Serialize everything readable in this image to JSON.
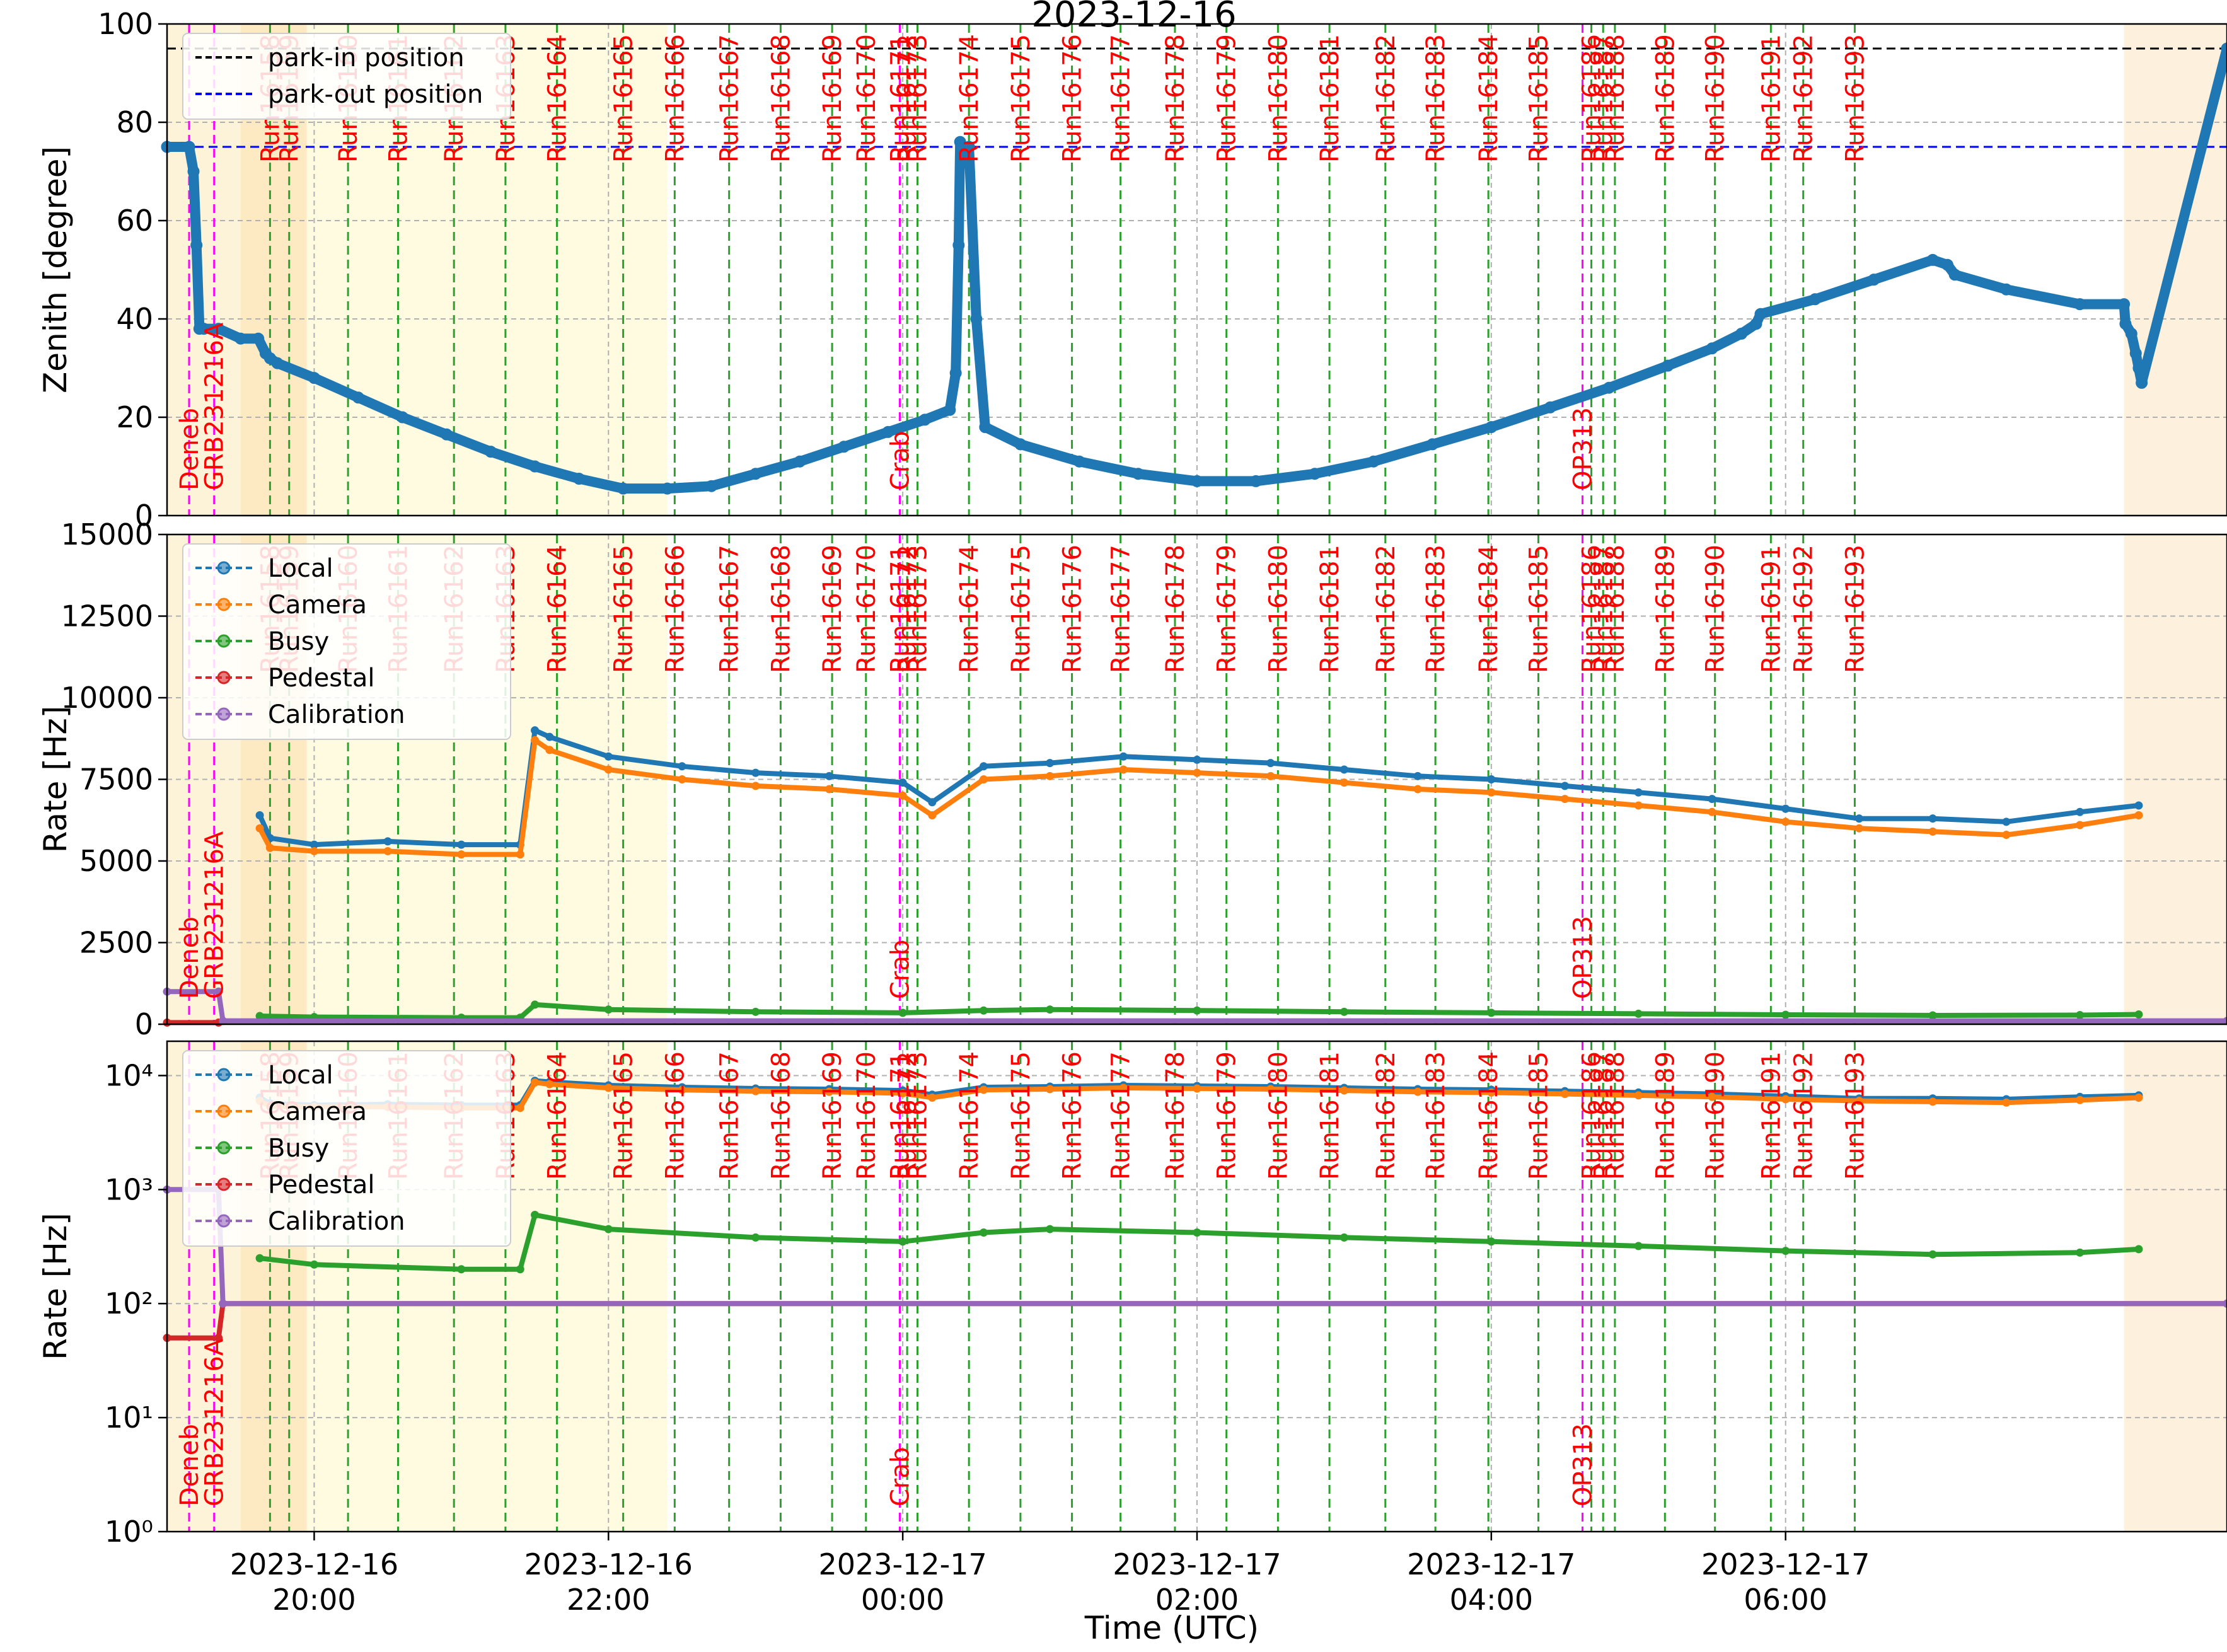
{
  "chart_data": [
    {
      "panel": "zenith",
      "type": "line",
      "title": "2023-12-16",
      "xlabel": "",
      "ylabel": "Zenith [degree]",
      "ylim": [
        0,
        100
      ],
      "yticks": [
        "0",
        "20",
        "40",
        "60",
        "80",
        "100"
      ],
      "grid": true,
      "legend": "top-left",
      "reference_lines": [
        {
          "name": "park-in position",
          "y": 95,
          "color": "#000000"
        },
        {
          "name": "park-out position",
          "y": 75,
          "color": "#0000ff"
        }
      ],
      "series": [
        {
          "name": "",
          "color": "#1f77b4",
          "x_hours": [
            -0.1,
            0.15,
            0.18,
            0.2,
            0.22,
            0.25,
            0.35,
            0.5,
            0.62,
            0.67,
            0.7,
            0.75,
            1.0,
            1.3,
            1.6,
            1.9,
            2.2,
            2.5,
            2.8,
            3.1,
            3.4,
            3.7,
            4.0,
            4.3,
            4.6,
            4.9,
            5.15,
            5.32,
            5.36,
            5.38,
            5.39,
            5.4,
            5.45,
            5.5,
            5.56,
            5.8,
            6.2,
            6.6,
            7.0,
            7.4,
            7.8,
            8.2,
            8.6,
            9.0,
            9.4,
            9.8,
            10.2,
            10.5,
            10.7,
            10.8,
            10.83,
            11.2,
            11.6,
            12.0,
            12.1,
            12.15,
            12.5,
            13.0,
            13.3,
            13.31,
            13.35,
            13.38,
            13.4,
            13.42,
            14.0
          ],
          "y_deg": [
            75,
            75,
            70,
            55,
            38,
            38,
            38,
            36,
            36,
            33,
            32,
            31,
            28,
            24,
            20,
            16.5,
            13,
            10,
            7.5,
            5.5,
            5.5,
            6,
            8.5,
            11,
            14,
            17,
            19.5,
            21.5,
            29,
            55,
            76,
            75,
            75,
            40,
            18,
            14.5,
            11,
            8.5,
            7,
            7,
            8.5,
            11,
            14.5,
            18,
            22,
            26,
            30.5,
            34,
            37,
            39,
            41,
            44,
            48,
            52,
            51,
            49,
            46,
            43,
            43,
            39,
            37,
            33,
            30,
            27,
            95
          ]
        }
      ]
    },
    {
      "panel": "rate-linear",
      "type": "line",
      "xlabel": "",
      "ylabel": "Rate [Hz]",
      "ylim": [
        0,
        15000
      ],
      "yticks": [
        "0",
        "2500",
        "5000",
        "7500",
        "10000",
        "12500",
        "15000"
      ],
      "grid": true,
      "legend": "top-left",
      "series": [
        {
          "name": "Local",
          "color": "#1f77b4",
          "x_hours": [
            0.63,
            0.7,
            1.0,
            1.5,
            2.0,
            2.4,
            2.5,
            2.6,
            3.0,
            3.5,
            4.0,
            4.5,
            5.0,
            5.2,
            5.55,
            6.0,
            6.5,
            7.0,
            7.5,
            8.0,
            8.5,
            9.0,
            9.5,
            10.0,
            10.5,
            11.0,
            11.5,
            12.0,
            12.5,
            13.0,
            13.4
          ],
          "values": [
            6400,
            5700,
            5500,
            5600,
            5500,
            5500,
            9000,
            8800,
            8200,
            7900,
            7700,
            7600,
            7400,
            6800,
            7900,
            8000,
            8200,
            8100,
            8000,
            7800,
            7600,
            7500,
            7300,
            7100,
            6900,
            6600,
            6300,
            6300,
            6200,
            6500,
            6700
          ]
        },
        {
          "name": "Camera",
          "color": "#ff7f0e",
          "x_hours": [
            0.63,
            0.7,
            1.0,
            1.5,
            2.0,
            2.4,
            2.5,
            2.6,
            3.0,
            3.5,
            4.0,
            4.5,
            5.0,
            5.2,
            5.55,
            6.0,
            6.5,
            7.0,
            7.5,
            8.0,
            8.5,
            9.0,
            9.5,
            10.0,
            10.5,
            11.0,
            11.5,
            12.0,
            12.5,
            13.0,
            13.4
          ],
          "values": [
            6000,
            5400,
            5300,
            5300,
            5200,
            5200,
            8700,
            8400,
            7800,
            7500,
            7300,
            7200,
            7000,
            6400,
            7500,
            7600,
            7800,
            7700,
            7600,
            7400,
            7200,
            7100,
            6900,
            6700,
            6500,
            6200,
            6000,
            5900,
            5800,
            6100,
            6400
          ]
        },
        {
          "name": "Busy",
          "color": "#2ca02c",
          "x_hours": [
            0.63,
            1.0,
            2.0,
            2.4,
            2.5,
            3.0,
            4.0,
            5.0,
            5.55,
            6.0,
            7.0,
            8.0,
            9.0,
            10.0,
            11.0,
            12.0,
            13.0,
            13.4
          ],
          "values": [
            250,
            220,
            200,
            200,
            600,
            450,
            380,
            350,
            420,
            450,
            420,
            380,
            350,
            320,
            290,
            270,
            280,
            300
          ]
        },
        {
          "name": "Pedestal",
          "color": "#d62728",
          "x_hours": [
            -0.1,
            0.35,
            0.38,
            14.0
          ],
          "values": [
            50,
            50,
            100,
            100
          ]
        },
        {
          "name": "Calibration",
          "color": "#9467bd",
          "x_hours": [
            -0.1,
            0.35,
            0.38,
            14.0
          ],
          "values": [
            1000,
            1000,
            100,
            100
          ]
        }
      ]
    },
    {
      "panel": "rate-log",
      "type": "line",
      "xlabel": "Time (UTC)",
      "ylabel": "Rate [Hz]",
      "yscale": "log",
      "ylim": [
        1,
        20000
      ],
      "yticks": [
        "10⁰",
        "10¹",
        "10²",
        "10³",
        "10⁴"
      ],
      "grid": true,
      "legend": "top-left",
      "xticks": [
        {
          "hours": 1,
          "line1": "2023-12-16",
          "line2": "20:00"
        },
        {
          "hours": 3,
          "line1": "2023-12-16",
          "line2": "22:00"
        },
        {
          "hours": 5,
          "line1": "2023-12-17",
          "line2": "00:00"
        },
        {
          "hours": 7,
          "line1": "2023-12-17",
          "line2": "02:00"
        },
        {
          "hours": 9,
          "line1": "2023-12-17",
          "line2": "04:00"
        },
        {
          "hours": 11,
          "line1": "2023-12-17",
          "line2": "06:00"
        }
      ],
      "series_ref": "same as rate-linear"
    }
  ],
  "x_range_hours": [
    0,
    14.0
  ],
  "runs": [
    {
      "label": "Run16158",
      "x": 0.7
    },
    {
      "label": "Run16159",
      "x": 0.83
    },
    {
      "label": "Run16160",
      "x": 1.23
    },
    {
      "label": "Run16161",
      "x": 1.57
    },
    {
      "label": "Run16162",
      "x": 1.95
    },
    {
      "label": "Run16163",
      "x": 2.3
    },
    {
      "label": "Run16164",
      "x": 2.65
    },
    {
      "label": "Run16165",
      "x": 3.1
    },
    {
      "label": "Run16166",
      "x": 3.45
    },
    {
      "label": "Run16167",
      "x": 3.82
    },
    {
      "label": "Run16168",
      "x": 4.17
    },
    {
      "label": "Run16169",
      "x": 4.52
    },
    {
      "label": "Run16170",
      "x": 4.75
    },
    {
      "label": "Run16171",
      "x": 4.98
    },
    {
      "label": "Run16172",
      "x": 5.03
    },
    {
      "label": "Run16173",
      "x": 5.1
    },
    {
      "label": "Run16174",
      "x": 5.45
    },
    {
      "label": "Run16175",
      "x": 5.8
    },
    {
      "label": "Run16176",
      "x": 6.15
    },
    {
      "label": "Run16177",
      "x": 6.48
    },
    {
      "label": "Run16178",
      "x": 6.85
    },
    {
      "label": "Run16179",
      "x": 7.2
    },
    {
      "label": "Run16180",
      "x": 7.55
    },
    {
      "label": "Run16181",
      "x": 7.9
    },
    {
      "label": "Run16182",
      "x": 8.28
    },
    {
      "label": "Run16183",
      "x": 8.62
    },
    {
      "label": "Run16184",
      "x": 8.98
    },
    {
      "label": "Run16185",
      "x": 9.32
    },
    {
      "label": "Run16186",
      "x": 9.68
    },
    {
      "label": "Run16187",
      "x": 9.76
    },
    {
      "label": "Run16188",
      "x": 9.84
    },
    {
      "label": "Run16189",
      "x": 10.18
    },
    {
      "label": "Run16190",
      "x": 10.52
    },
    {
      "label": "Run16191",
      "x": 10.9
    },
    {
      "label": "Run16192",
      "x": 11.12
    },
    {
      "label": "Run16193",
      "x": 11.47
    }
  ],
  "sources": [
    {
      "label": "Deneb",
      "x": 0.15
    },
    {
      "label": "GRB231216A",
      "x": 0.32
    },
    {
      "label": "Crab",
      "x": 4.98
    },
    {
      "label": "OP313",
      "x": 9.62
    }
  ]
}
